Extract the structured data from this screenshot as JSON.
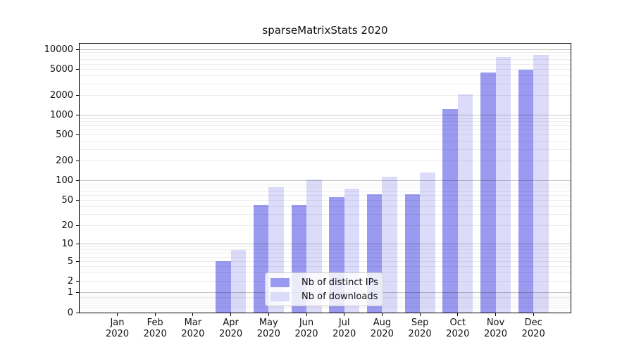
{
  "chart_data": {
    "type": "bar",
    "title": "sparseMatrixStats 2020",
    "x_tick_year": "2020",
    "categories": [
      "Jan",
      "Feb",
      "Mar",
      "Apr",
      "May",
      "Jun",
      "Jul",
      "Aug",
      "Sep",
      "Oct",
      "Nov",
      "Dec"
    ],
    "series": [
      {
        "name": "Nb of distinct IPs",
        "color": "#9a9af0",
        "values": [
          0,
          0,
          0,
          5,
          43,
          43,
          56,
          62,
          62,
          1230,
          4500,
          5000
        ]
      },
      {
        "name": "Nb of downloads",
        "color": "#dcdcfa",
        "values": [
          0,
          0,
          0,
          8,
          80,
          105,
          76,
          115,
          135,
          2060,
          7700,
          8200
        ]
      }
    ],
    "yscale": "log1p",
    "ylim": [
      0,
      12000
    ],
    "ytick_values": [
      0,
      1,
      2,
      5,
      10,
      20,
      50,
      100,
      200,
      500,
      1000,
      2000,
      5000,
      10000
    ],
    "ytick_labels": [
      "0",
      "1",
      "2",
      "5",
      "10",
      "20",
      "50",
      "100",
      "200",
      "500",
      "1000",
      "2000",
      "5000",
      "10000"
    ],
    "grid": {
      "orientation": "horizontal",
      "major_color": "#c6c6c6",
      "minor_color": "#ededed"
    },
    "legend": {
      "position": "lower center"
    }
  }
}
